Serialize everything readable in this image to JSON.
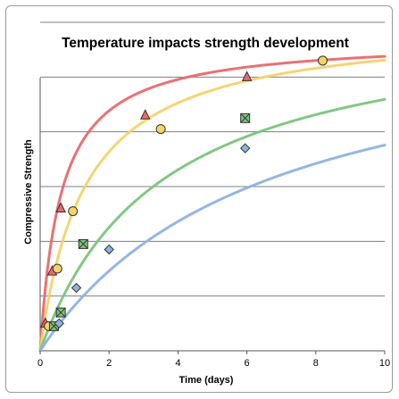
{
  "chart_data": {
    "type": "scatter",
    "title": "Temperature impacts strength development",
    "xlabel": "Time (days)",
    "ylabel": "Compressive Strength",
    "xlim": [
      0,
      10
    ],
    "ylim": [
      0,
      6
    ],
    "xticks": [
      0,
      2,
      4,
      6,
      8,
      10
    ],
    "grid": "horizontal",
    "legend": "none",
    "series": [
      {
        "marker": "triangle",
        "color": "#e8696b",
        "points": [
          [
            0.15,
            0.5
          ],
          [
            0.35,
            1.45
          ],
          [
            0.6,
            2.6
          ],
          [
            3.05,
            4.3
          ],
          [
            6.0,
            5.0
          ]
        ],
        "fit_max": 5.7,
        "fit_k": 0.6
      },
      {
        "marker": "circle",
        "color": "#f4d36a",
        "points": [
          [
            0.25,
            0.45
          ],
          [
            0.5,
            1.5
          ],
          [
            0.95,
            2.55
          ],
          [
            3.5,
            4.05
          ],
          [
            8.2,
            5.3
          ]
        ],
        "fit_max": 6.0,
        "fit_k": 1.3
      },
      {
        "marker": "square",
        "color": "#7cc47c",
        "points": [
          [
            0.4,
            0.45
          ],
          [
            0.6,
            0.7
          ],
          [
            1.25,
            1.95
          ],
          [
            5.95,
            4.25
          ]
        ],
        "fit_max": 6.2,
        "fit_k": 3.5
      },
      {
        "marker": "diamond",
        "color": "#8fb2e0",
        "points": [
          [
            0.55,
            0.5
          ],
          [
            1.05,
            1.15
          ],
          [
            2.0,
            1.85
          ],
          [
            5.95,
            3.7
          ]
        ],
        "fit_max": 6.2,
        "fit_k": 6.5
      }
    ]
  }
}
